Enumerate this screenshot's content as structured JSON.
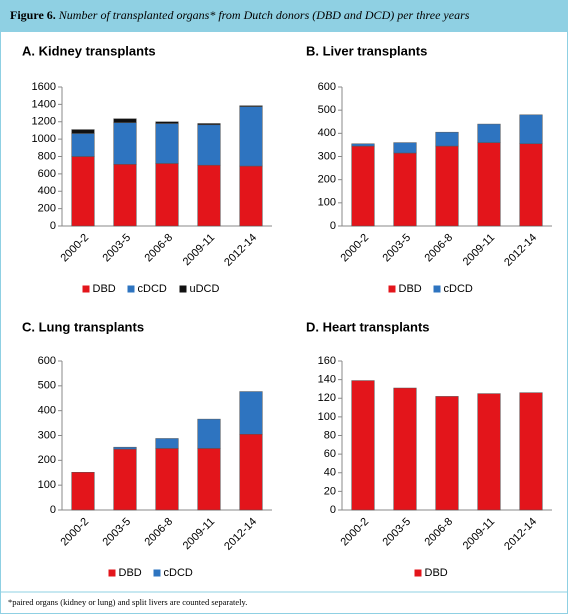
{
  "figure_label": "Figure 6.",
  "figure_caption": "Number of transplanted organs* from Dutch donors (DBD and DCD) per three years",
  "footnote": "*paired organs (kidney or lung) and split livers are counted separately.",
  "chart_data": [
    {
      "type": "bar",
      "stacked": true,
      "title": "A. Kidney transplants",
      "categories": [
        "2000-2",
        "2003-5",
        "2006-8",
        "2009-11",
        "2012-14"
      ],
      "series": [
        {
          "name": "DBD",
          "color": "#e3151b",
          "values": [
            800,
            710,
            720,
            700,
            690
          ]
        },
        {
          "name": "cDCD",
          "color": "#2e74c0",
          "values": [
            265,
            480,
            460,
            465,
            685
          ]
        },
        {
          "name": "uDCD",
          "color": "#111111",
          "values": [
            45,
            45,
            20,
            15,
            10
          ]
        }
      ],
      "ylim": [
        0,
        1600
      ],
      "yticks": [
        0,
        200,
        400,
        600,
        800,
        1000,
        1200,
        1400,
        1600
      ],
      "legend": "bottom"
    },
    {
      "type": "bar",
      "stacked": true,
      "title": "B. Liver transplants",
      "categories": [
        "2000-2",
        "2003-5",
        "2006-8",
        "2009-11",
        "2012-14"
      ],
      "series": [
        {
          "name": "DBD",
          "color": "#e3151b",
          "values": [
            345,
            315,
            345,
            360,
            355
          ]
        },
        {
          "name": "cDCD",
          "color": "#2e74c0",
          "values": [
            10,
            45,
            60,
            80,
            125
          ]
        }
      ],
      "ylim": [
        0,
        600
      ],
      "yticks": [
        0,
        100,
        200,
        300,
        400,
        500,
        600
      ],
      "legend": "bottom"
    },
    {
      "type": "bar",
      "stacked": true,
      "title": "C. Lung transplants",
      "categories": [
        "2000-2",
        "2003-5",
        "2006-8",
        "2009-11",
        "2012-14"
      ],
      "series": [
        {
          "name": "DBD",
          "color": "#e3151b",
          "values": [
            152,
            245,
            248,
            248,
            305
          ]
        },
        {
          "name": "cDCD",
          "color": "#2e74c0",
          "values": [
            0,
            8,
            40,
            118,
            172
          ]
        }
      ],
      "ylim": [
        0,
        600
      ],
      "yticks": [
        0,
        100,
        200,
        300,
        400,
        500,
        600
      ],
      "legend": "bottom"
    },
    {
      "type": "bar",
      "stacked": true,
      "title": "D. Heart transplants",
      "categories": [
        "2000-2",
        "2003-5",
        "2006-8",
        "2009-11",
        "2012-14"
      ],
      "series": [
        {
          "name": "DBD",
          "color": "#e3151b",
          "values": [
            139,
            131,
            122,
            125,
            126
          ]
        }
      ],
      "ylim": [
        0,
        160
      ],
      "yticks": [
        0,
        20,
        40,
        60,
        80,
        100,
        120,
        140,
        160
      ],
      "legend": "bottom"
    }
  ]
}
